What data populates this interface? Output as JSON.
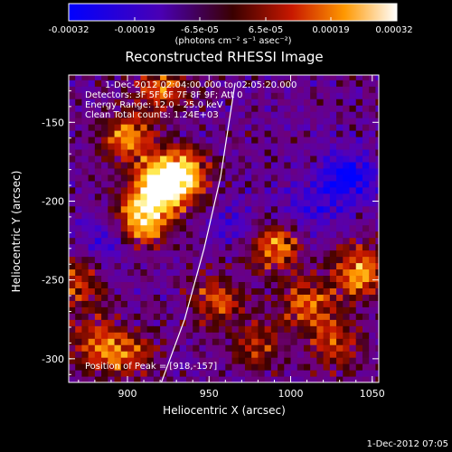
{
  "chart_data": {
    "type": "heatmap",
    "title": "Reconstructed RHESSI Image",
    "xlabel": "Heliocentric X (arcsec)",
    "ylabel": "Heliocentric Y (arcsec)",
    "xlim": [
      864,
      1054
    ],
    "ylim": [
      -315,
      -120
    ],
    "x_ticks": [
      "900",
      "950",
      "1000",
      "1050"
    ],
    "y_ticks": [
      "-150",
      "-200",
      "-250",
      "-300"
    ],
    "colorbar": {
      "label": "(photons cm⁻² s⁻¹ asec⁻²)",
      "range": [
        -0.00032,
        0.00032
      ],
      "ticks": [
        "-0.00032",
        "-0.00019",
        "-6.5e-05",
        "6.5e-05",
        "0.00019",
        "0.00032"
      ]
    },
    "annotations": [
      "1-Dec-2012 02:04:00.000 to 02:05:20.000",
      "Detectors: 3F 5F 6F 7F 8F 9F; Att 0",
      "Energy Range: 12.0 - 25.0 keV",
      "Clean     Total counts: 1.24E+03"
    ],
    "peak_label": "Position of Peak = [918,-157]",
    "peak": [
      918,
      -157
    ],
    "limb_curve": [
      [
        919,
        -320
      ],
      [
        935,
        -275
      ],
      [
        947,
        -230
      ],
      [
        957,
        -185
      ],
      [
        966,
        -125
      ]
    ],
    "bright_sources": [
      {
        "x": 920,
        "y": -190,
        "level": 1.0
      },
      {
        "x": 909,
        "y": -212,
        "level": 0.85
      },
      {
        "x": 934,
        "y": -183,
        "level": 0.8
      },
      {
        "x": 900,
        "y": -160,
        "level": 0.65
      },
      {
        "x": 922,
        "y": -128,
        "level": 0.6
      },
      {
        "x": 990,
        "y": -228,
        "level": 0.7
      },
      {
        "x": 1042,
        "y": -245,
        "level": 0.75
      },
      {
        "x": 1010,
        "y": -265,
        "level": 0.6
      },
      {
        "x": 955,
        "y": -263,
        "level": 0.55
      },
      {
        "x": 880,
        "y": -290,
        "level": 0.5
      },
      {
        "x": 900,
        "y": -297,
        "level": 0.5
      },
      {
        "x": 980,
        "y": -292,
        "level": 0.45
      },
      {
        "x": 1028,
        "y": -290,
        "level": 0.5
      },
      {
        "x": 870,
        "y": -252,
        "level": 0.55
      }
    ],
    "dim_sources": [
      {
        "x": 1035,
        "y": -185,
        "level": -0.8
      },
      {
        "x": 1010,
        "y": -205,
        "level": -0.45
      },
      {
        "x": 885,
        "y": -225,
        "level": -0.4
      },
      {
        "x": 970,
        "y": -215,
        "level": -0.35
      }
    ]
  },
  "footer": {
    "timestamp": "1-Dec-2012 07:05"
  }
}
